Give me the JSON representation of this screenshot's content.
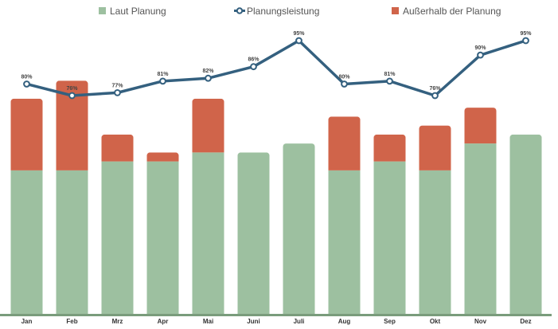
{
  "chart_data": {
    "type": "bar",
    "categories": [
      "Jan",
      "Feb",
      "Mrz",
      "Apr",
      "Mai",
      "Juni",
      "Juli",
      "Aug",
      "Sep",
      "Okt",
      "Nov",
      "Dez"
    ],
    "series": [
      {
        "name": "Laut Planung",
        "kind": "bar",
        "stack": "main",
        "color": "#9dc0a0",
        "values": [
          8,
          8,
          8.5,
          8.5,
          9,
          9,
          9.5,
          8,
          8.5,
          8,
          9.5,
          10
        ]
      },
      {
        "name": "Außerhalb der Planung",
        "kind": "bar",
        "stack": "main",
        "color": "#d0644a",
        "values": [
          4,
          5,
          1.5,
          0.5,
          3,
          0,
          0,
          3,
          1.5,
          2.5,
          2,
          0
        ]
      },
      {
        "name": "Planungsleistung",
        "kind": "line",
        "color": "#34607f",
        "values": [
          80,
          76,
          77,
          81,
          82,
          86,
          95,
          80,
          81,
          76,
          90,
          95
        ],
        "labels": [
          "80%",
          "76%",
          "77%",
          "81%",
          "82%",
          "86%",
          "95%",
          "80%",
          "81%",
          "76%",
          "90%",
          "95%"
        ]
      }
    ],
    "legend": {
      "position": "top-center",
      "order": [
        "Laut Planung",
        "Planungsleistung",
        "Außerhalb der Planung"
      ]
    },
    "y_bar_range": [
      0,
      13
    ],
    "y_line_range": [
      60,
      95
    ],
    "grid": false
  }
}
